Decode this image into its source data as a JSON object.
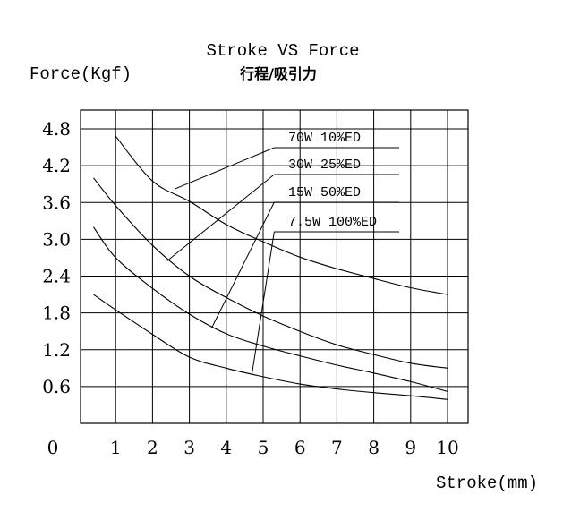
{
  "chart_data": {
    "type": "line",
    "title": "Stroke VS  Force",
    "subtitle": "行程/吸引力",
    "ylabel": "Force(Kgf)",
    "xlabel": "Stroke(mm)",
    "origin_label": "0",
    "xlim": [
      0,
      10
    ],
    "ylim": [
      0,
      4.8
    ],
    "x_ticks": [
      "1",
      "2",
      "3",
      "4",
      "5",
      "6",
      "7",
      "8",
      "9",
      "10"
    ],
    "y_ticks": [
      "0.6",
      "1.2",
      "1.8",
      "2.4",
      "3.0",
      "3.6",
      "4.2",
      "4.8"
    ],
    "grid": true,
    "series": [
      {
        "name": "70W  10%ED",
        "x": [
          1,
          2,
          3,
          4,
          5,
          6,
          7,
          8,
          9,
          10
        ],
        "y": [
          4.68,
          3.95,
          3.62,
          3.24,
          2.96,
          2.71,
          2.52,
          2.36,
          2.21,
          2.1
        ]
      },
      {
        "name": "30W  25%ED",
        "x": [
          0.4,
          1,
          2,
          3,
          4,
          5,
          6,
          7,
          8,
          9,
          10
        ],
        "y": [
          4.0,
          3.55,
          2.9,
          2.4,
          2.05,
          1.75,
          1.5,
          1.28,
          1.12,
          0.98,
          0.9
        ]
      },
      {
        "name": "15W  50%ED",
        "x": [
          0.4,
          1,
          2,
          3,
          4,
          5,
          6,
          7,
          8,
          9,
          10
        ],
        "y": [
          3.2,
          2.7,
          2.2,
          1.78,
          1.46,
          1.26,
          1.1,
          0.95,
          0.82,
          0.68,
          0.52
        ]
      },
      {
        "name": "7.5W 100%ED",
        "x": [
          0.4,
          1,
          2,
          3,
          4,
          5,
          6,
          7,
          8,
          9,
          10
        ],
        "y": [
          2.1,
          1.85,
          1.45,
          1.08,
          0.9,
          0.76,
          0.64,
          0.56,
          0.5,
          0.45,
          0.39
        ]
      }
    ],
    "legend_lines": [
      {
        "label": "70W  10%ED",
        "leader_start": [
          2.6,
          3.82
        ],
        "leader_end": [
          5.3,
          4.36
        ]
      },
      {
        "label": "30W  25%ED",
        "leader_start": [
          2.4,
          2.65
        ],
        "leader_end": [
          5.3,
          3.95
        ]
      },
      {
        "label": "15W  50%ED",
        "leader_start": [
          3.6,
          1.55
        ],
        "leader_end": [
          5.3,
          3.55
        ]
      },
      {
        "label": "7.5W 100%ED",
        "leader_start": [
          4.7,
          0.82
        ],
        "leader_end": [
          5.3,
          3.15
        ]
      }
    ]
  }
}
